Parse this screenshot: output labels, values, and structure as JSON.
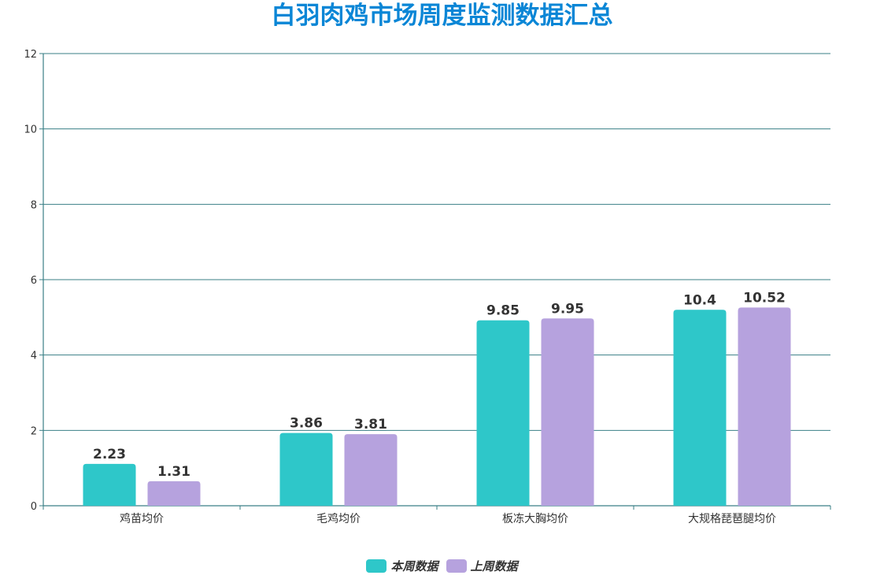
{
  "colors": {
    "title": "#0a86d6",
    "grid": "#3a7f86",
    "axis": "#3a7f86",
    "series_current": "#2ec7c9",
    "series_previous": "#b6a2de"
  },
  "chart_data": {
    "type": "bar",
    "title": "白羽肉鸡市场周度监测数据汇总",
    "xlabel": "",
    "ylabel": "",
    "ylim": [
      0,
      12
    ],
    "yticks": [
      0,
      2,
      4,
      6,
      8,
      10,
      12
    ],
    "categories": [
      "鸡苗均价",
      "毛鸡均价",
      "板冻大胸均价",
      "大规格琵琶腿均价"
    ],
    "series": [
      {
        "name": "本周数据",
        "values": [
          1.11,
          1.93,
          4.92,
          5.2
        ],
        "labels": [
          "2.23",
          "3.86",
          "9.85",
          "10.4"
        ]
      },
      {
        "name": "上周数据",
        "values": [
          0.65,
          1.9,
          4.97,
          5.26
        ],
        "labels": [
          "1.31",
          "3.81",
          "9.95",
          "10.52"
        ]
      }
    ],
    "grid": true,
    "legend_position": "bottom-center"
  }
}
